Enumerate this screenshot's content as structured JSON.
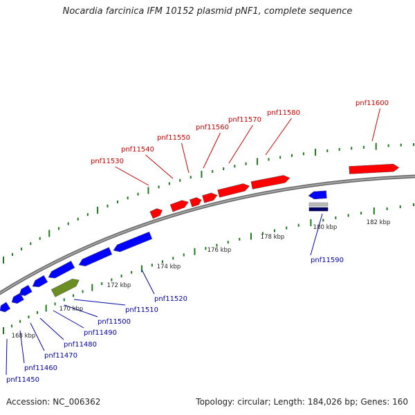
{
  "title": "Nocardia farcinica IFM 10152 plasmid pNF1, complete sequence",
  "footer": {
    "accession": "Accession: NC_006362",
    "summary": "Topology: circular; Length: 184,026 bp; Genes: 160"
  },
  "colors": {
    "backbone": "#888888",
    "forward_gene": "#ff0000",
    "reverse_gene": "#0000ff",
    "other_gene": "#6b8e23",
    "tick": "#1a7a1a",
    "forward_label": "#cc0000",
    "reverse_label": "#0000aa"
  },
  "ticks": [
    {
      "label": "168 kbp"
    },
    {
      "label": "170 kbp"
    },
    {
      "label": "172 kbp"
    },
    {
      "label": "174 kbp"
    },
    {
      "label": "176 kbp"
    },
    {
      "label": "178 kbp"
    },
    {
      "label": "180 kbp"
    },
    {
      "label": "182 kbp"
    }
  ],
  "forward_genes": [
    {
      "label": "pnf11530"
    },
    {
      "label": "pnf11540"
    },
    {
      "label": "pnf11550"
    },
    {
      "label": "pnf11560"
    },
    {
      "label": "pnf11570"
    },
    {
      "label": "pnf11580"
    },
    {
      "label": "pnf11600"
    }
  ],
  "reverse_genes": [
    {
      "label": "pnf11450"
    },
    {
      "label": "pnf11460"
    },
    {
      "label": "pnf11470"
    },
    {
      "label": "pnf11480"
    },
    {
      "label": "pnf11490"
    },
    {
      "label": "pnf11500"
    },
    {
      "label": "pnf11510"
    },
    {
      "label": "pnf11520"
    },
    {
      "label": "pnf11590"
    }
  ]
}
